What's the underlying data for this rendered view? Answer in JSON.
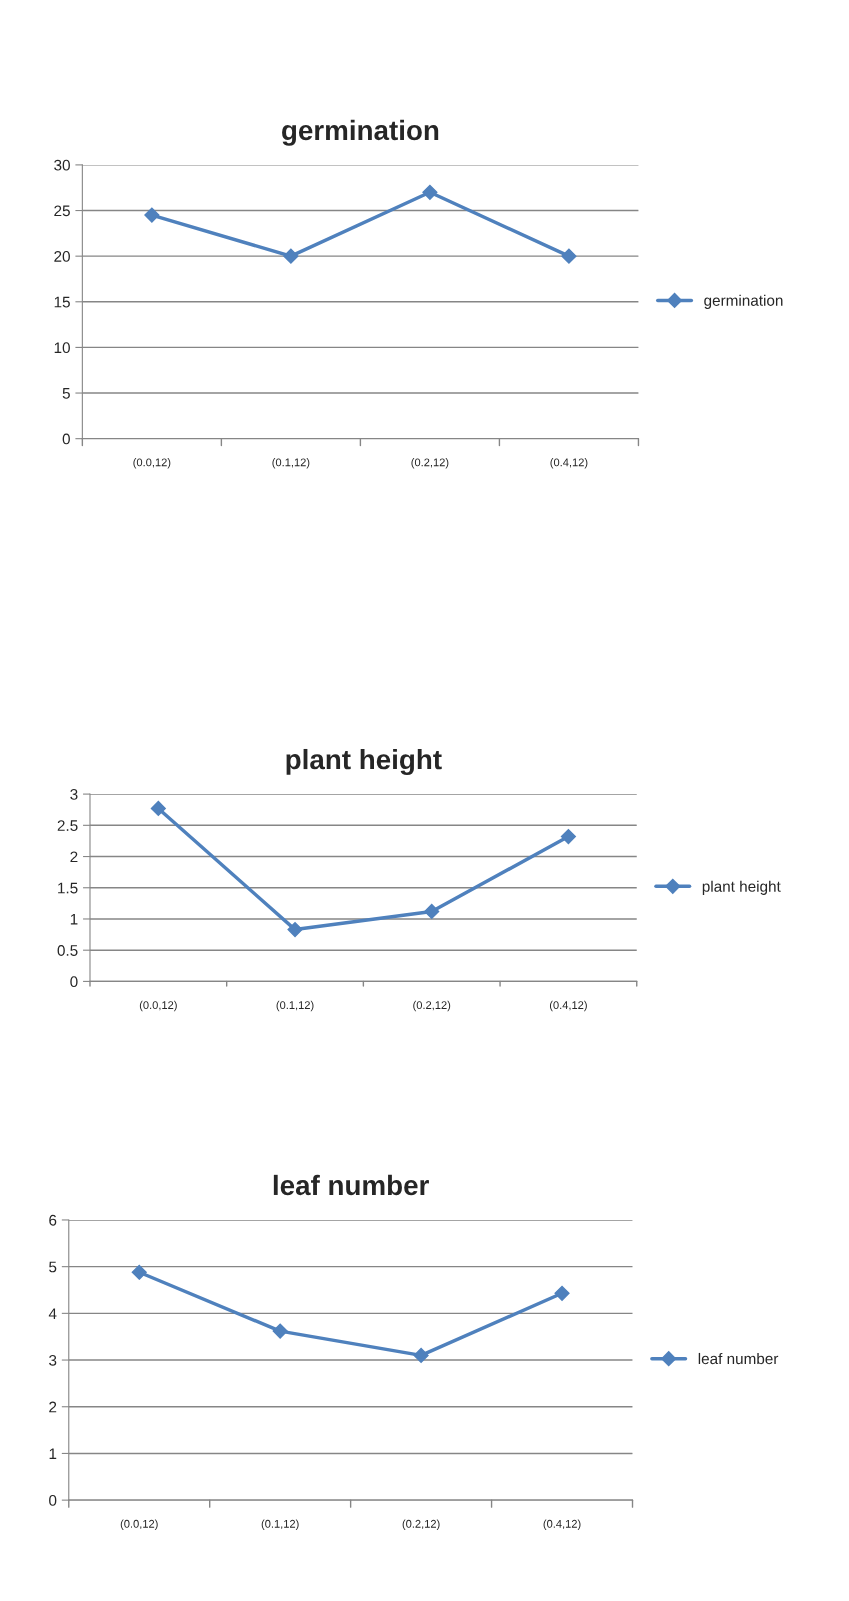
{
  "chart_data": [
    {
      "type": "line",
      "title": "germination",
      "categories": [
        "(0.0,12)",
        "(0.1,12)",
        "(0.2,12)",
        "(0.4,12)"
      ],
      "series": [
        {
          "name": "germination",
          "color": "#4f81bd",
          "values": [
            24.5,
            20,
            27,
            20
          ]
        }
      ],
      "ylim": [
        0,
        30
      ],
      "yticks": [
        0,
        5,
        10,
        15,
        20,
        25,
        30
      ],
      "grid": "y",
      "legend": "right",
      "marker": "diamond",
      "line_style": "solid"
    },
    {
      "type": "line",
      "title": "plant height",
      "categories": [
        "(0.0,12)",
        "(0.1,12)",
        "(0.2,12)",
        "(0.4,12)"
      ],
      "series": [
        {
          "name": "plant height",
          "color": "#4f81bd",
          "values": [
            2.77,
            0.83,
            1.12,
            2.32
          ]
        }
      ],
      "ylim": [
        0,
        3
      ],
      "yticks": [
        0,
        0.5,
        1,
        1.5,
        2,
        2.5,
        3
      ],
      "grid": "y",
      "legend": "right",
      "marker": "diamond",
      "line_style": "solid"
    },
    {
      "type": "line",
      "title": "leaf number",
      "categories": [
        "(0.0,12)",
        "(0.1,12)",
        "(0.2,12)",
        "(0.4,12)"
      ],
      "series": [
        {
          "name": "leaf number",
          "color": "#4f81bd",
          "values": [
            4.88,
            3.62,
            3.1,
            4.43
          ]
        }
      ],
      "ylim": [
        0,
        6
      ],
      "yticks": [
        0,
        1,
        2,
        3,
        4,
        5,
        6
      ],
      "grid": "y",
      "legend": "right",
      "marker": "diamond",
      "line_style": "solid"
    }
  ]
}
